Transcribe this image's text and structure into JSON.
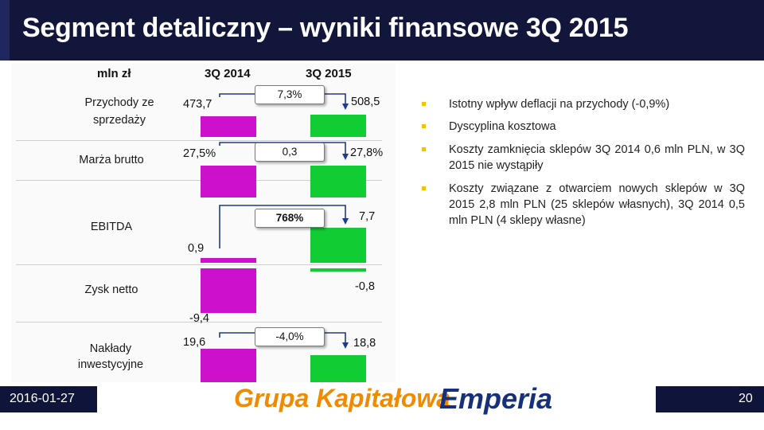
{
  "header": {
    "title": "Segment detaliczny – wyniki finansowe 3Q 2015"
  },
  "table": {
    "unit": "mln zł",
    "col1": "3Q 2014",
    "col2": "3Q 2015",
    "rows": {
      "revenue": {
        "label": "Przychody ze sprzedaży",
        "v2014": "473,7",
        "change": "7,3%",
        "v2015": "508,5"
      },
      "margin": {
        "label": "Marża brutto",
        "v2014": "27,5%",
        "change": "0,3",
        "v2015": "27,8%"
      },
      "ebitda": {
        "label": "EBITDA",
        "v2014": "0,9",
        "change": "768%",
        "v2015": "7,7"
      },
      "net": {
        "label": "Zysk netto",
        "v2014": "-9,4",
        "v2015": "-0,8"
      },
      "capex": {
        "label": "Nakłady inwestycyjne",
        "v2014": "19,6",
        "change": "-4,0%",
        "v2015": "18,8"
      }
    }
  },
  "bullets": [
    "Istotny wpływ deflacji na przychody (-0,9%)",
    "Dyscyplina kosztowa",
    "Koszty zamknięcia sklepów 3Q 2014 0,6 mln PLN, w 3Q 2015 nie wystąpiły",
    "Koszty związane z otwarciem nowych sklepów w 3Q 2015 2,8 mln PLN (25 sklepów własnych), 3Q 2014 0,5 mln PLN (4 sklepy własne)"
  ],
  "footer": {
    "date": "2016-01-27",
    "brand_part1": "Grupa Kapitałowa",
    "brand_part2": "Emperia",
    "page": "20"
  },
  "colors": {
    "header": "#11163a",
    "bar_2014": "#cc10cc",
    "bar_2015": "#11cc33",
    "bullet": "#f0c400",
    "brand_orange": "#f08a00",
    "brand_blue": "#16307a"
  }
}
